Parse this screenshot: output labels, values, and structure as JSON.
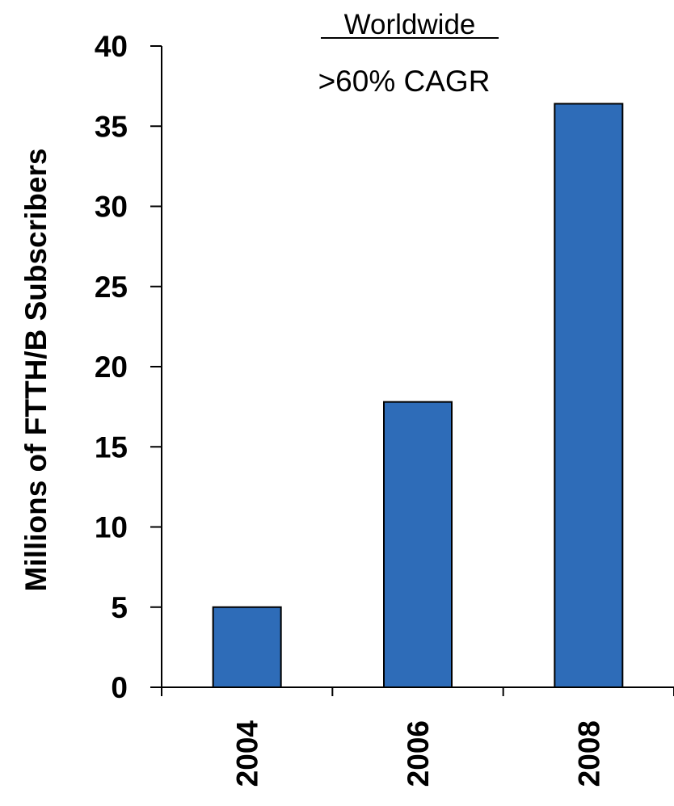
{
  "chart_data": {
    "type": "bar",
    "title": "Worldwide",
    "subtitle": ">60% CAGR",
    "xlabel": "",
    "ylabel": "Millions of FTTH/B Subscribers",
    "categories": [
      "2004",
      "2006",
      "2008"
    ],
    "values": [
      5,
      17.8,
      36.4
    ],
    "ylim": [
      0,
      40
    ],
    "yticks": [
      0,
      5,
      10,
      15,
      20,
      25,
      30,
      35,
      40
    ],
    "bar_color": "#2e6cb8",
    "grid": false,
    "legend": "none"
  }
}
